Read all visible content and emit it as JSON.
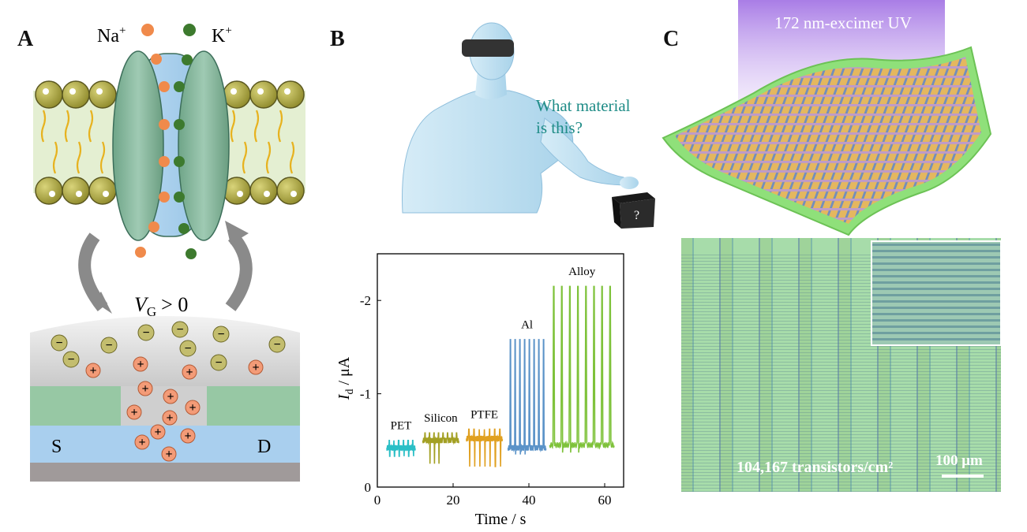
{
  "panels": {
    "a": {
      "letter": "A",
      "ion_na": "Na",
      "ion_k": "K",
      "ion_sup": "+",
      "gate_v": "V",
      "gate_sub": "G",
      "gate_rel": "> 0",
      "source": "S",
      "drain": "D",
      "plus": "+",
      "minus": "−"
    },
    "b": {
      "letter": "B",
      "question_line1": "What material",
      "question_line2": "is this?",
      "box_mark": "?"
    },
    "c": {
      "letter": "C",
      "uv_label": "172 nm-excimer UV",
      "density_label": "104,167 transistors/cm²",
      "scale_label": "100 μm"
    }
  },
  "colors": {
    "accent_teal": "#1f8c87",
    "na_orange": "#f08a4b",
    "k_green": "#3d7a2e",
    "pet": "#2bbfc6",
    "silicon": "#a3a024",
    "ptfe": "#e0a020",
    "al": "#5b93c8",
    "alloy": "#7ec23a"
  },
  "chart_data": {
    "type": "line",
    "xlabel": "Time / s",
    "ylabel_main": "I",
    "ylabel_sub": "d",
    "ylabel_unit": " / μA",
    "xlim": [
      0,
      65
    ],
    "ylim": [
      0,
      -2.5
    ],
    "xticks": [
      0,
      20,
      40,
      60
    ],
    "yticks": [
      0,
      -1,
      -2
    ],
    "xtick_labels": [
      "0",
      "20",
      "40",
      "60"
    ],
    "ytick_labels": [
      "0",
      "-1",
      "-2"
    ],
    "series": [
      {
        "name": "PET",
        "x_start": 2.5,
        "x_end": 10,
        "baseline": -0.42,
        "peak": -0.5,
        "dip": -0.33,
        "pulses": 6
      },
      {
        "name": "Silicon",
        "x_start": 12,
        "x_end": 21.5,
        "baseline": -0.5,
        "peak": -0.58,
        "dip": -0.25,
        "pulses": 8
      },
      {
        "name": "PTFE",
        "x_start": 23.5,
        "x_end": 33,
        "baseline": -0.52,
        "peak": -0.62,
        "dip": -0.22,
        "pulses": 7
      },
      {
        "name": "Al",
        "x_start": 34.5,
        "x_end": 44.5,
        "baseline": -0.42,
        "peak": -1.58,
        "dip": -0.35,
        "pulses": 8
      },
      {
        "name": "Alloy",
        "x_start": 45.5,
        "x_end": 62.5,
        "baseline": -0.45,
        "peak": -2.15,
        "dip": -0.37,
        "pulses": 8
      }
    ]
  }
}
